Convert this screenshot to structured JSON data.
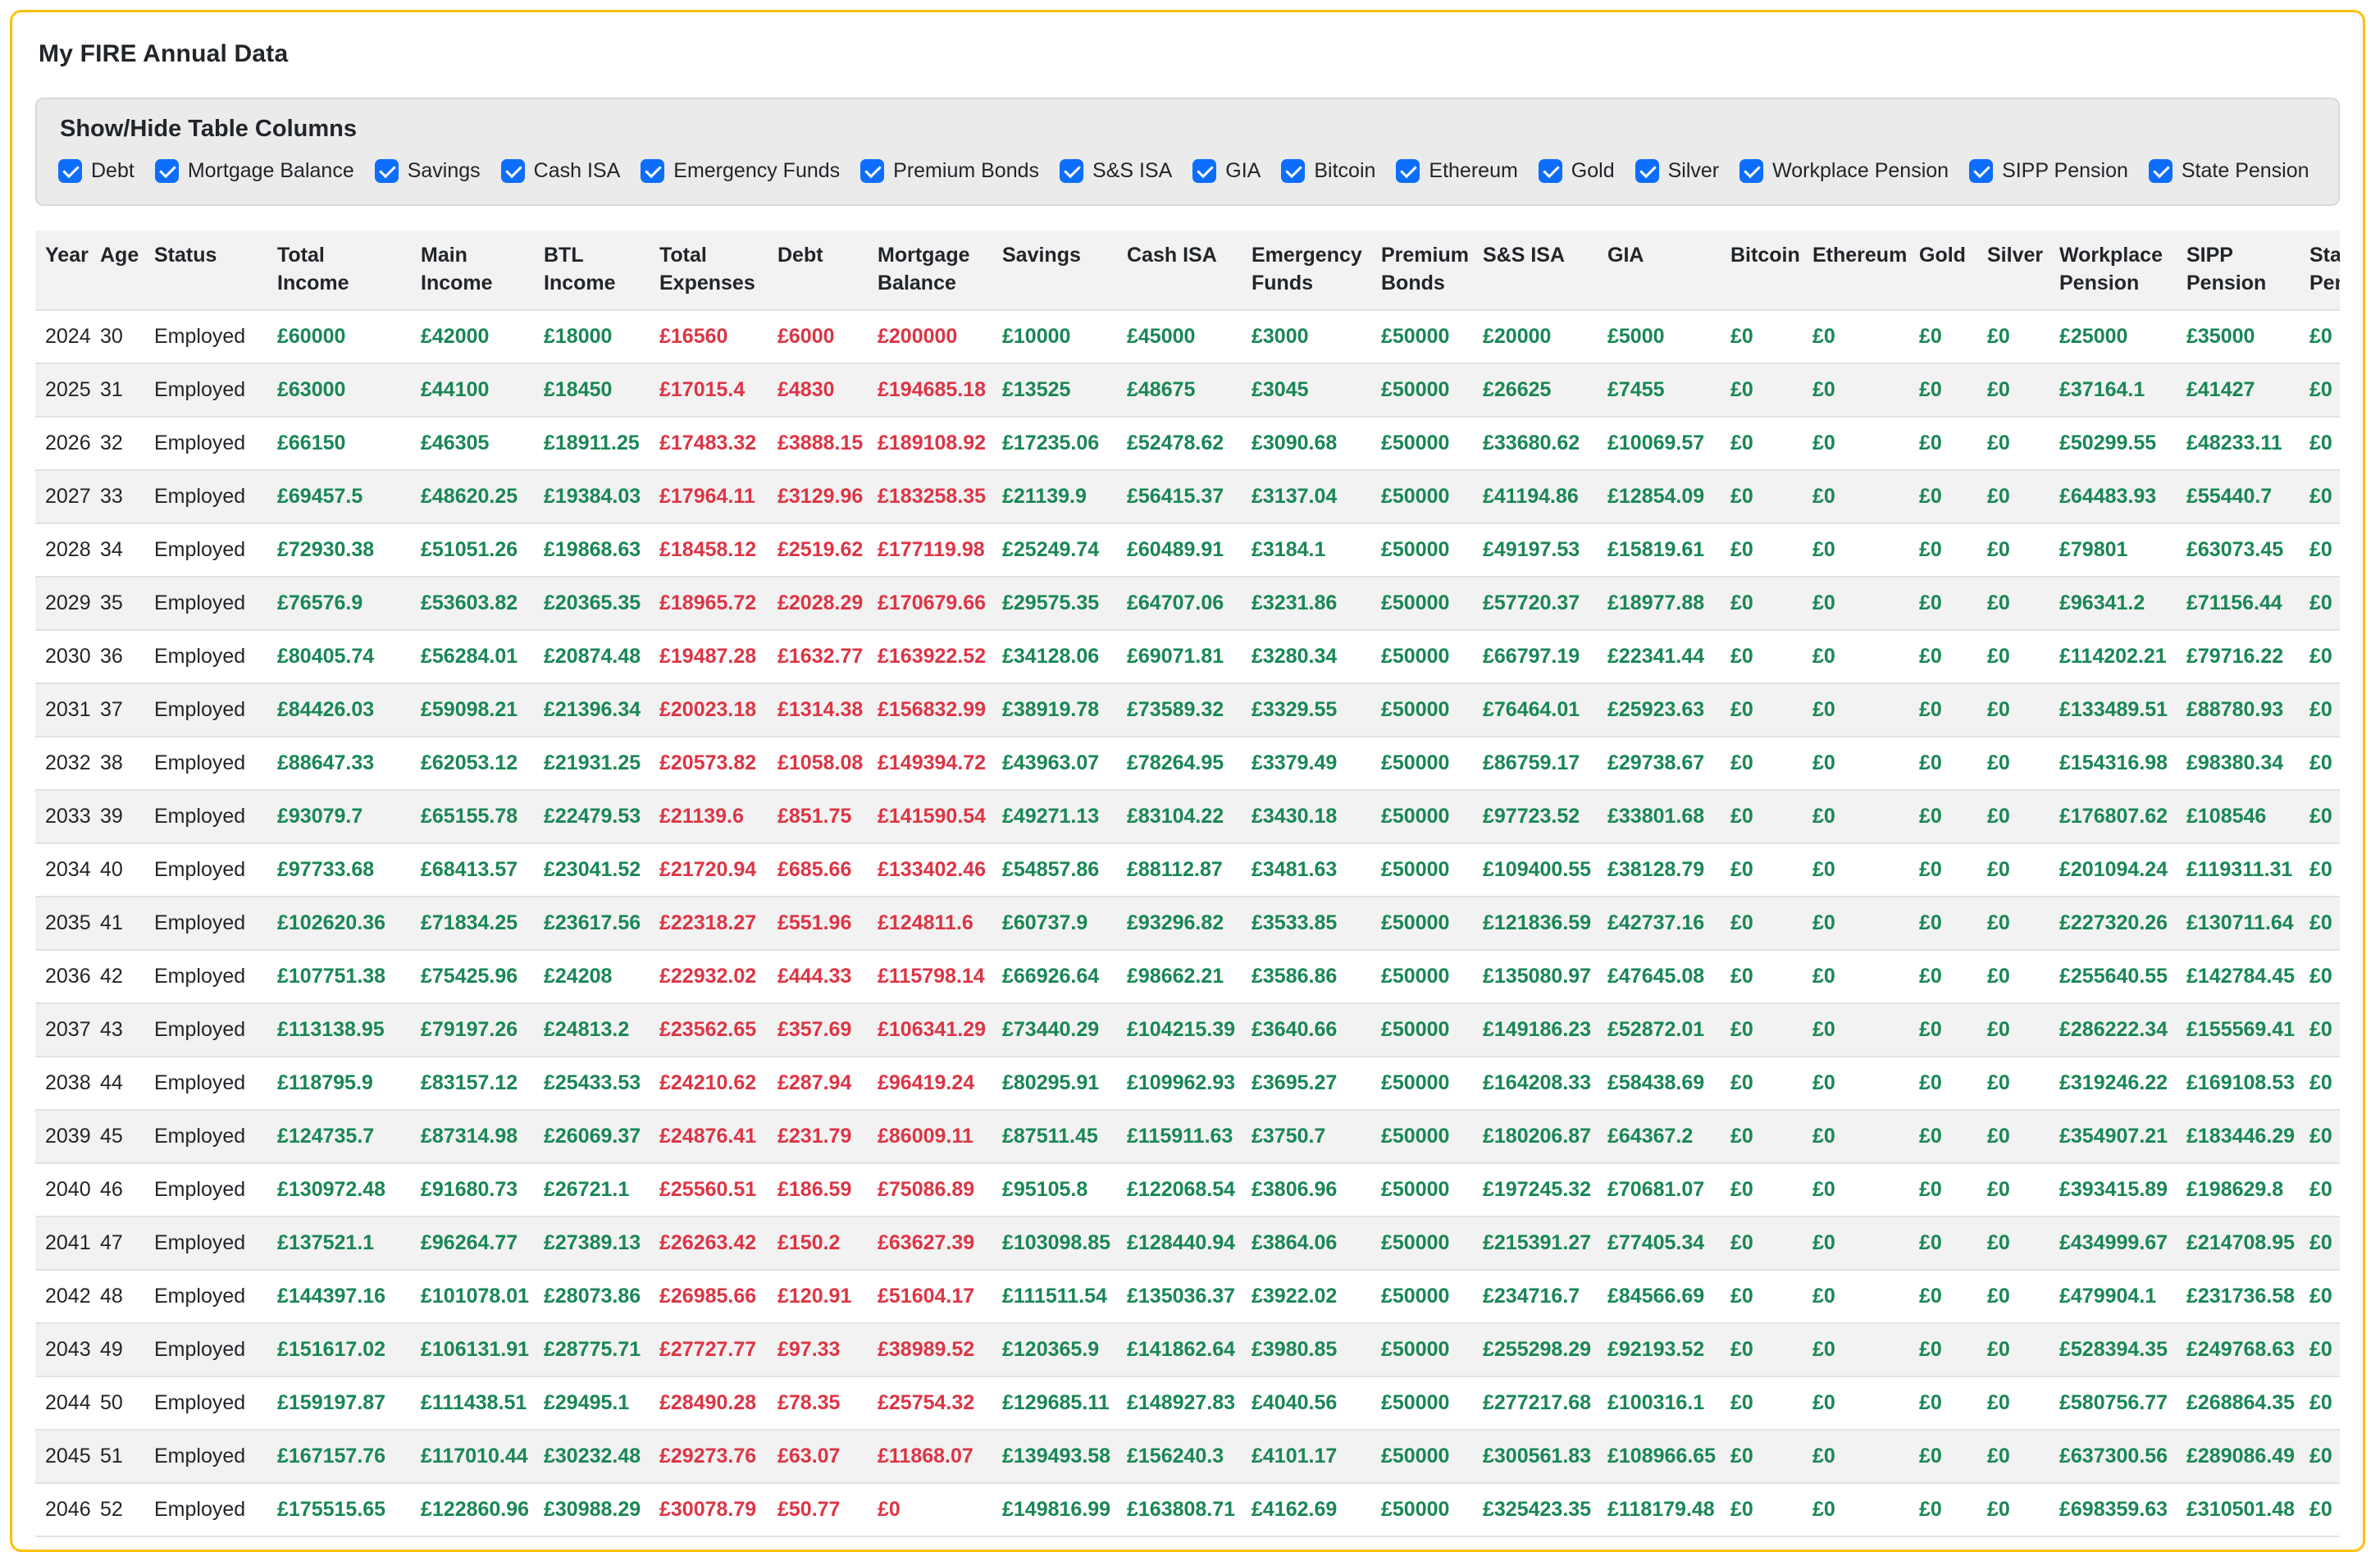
{
  "page": {
    "title": "My FIRE Annual Data"
  },
  "colors": {
    "positive": "#198754",
    "negative": "#dc3545",
    "checkbox": "#0d6efd",
    "card_border": "#ffc107",
    "stripe": "#f2f2f2"
  },
  "column_toggles": {
    "heading": "Show/Hide Table Columns",
    "items": [
      {
        "label": "Debt",
        "checked": true
      },
      {
        "label": "Mortgage Balance",
        "checked": true
      },
      {
        "label": "Savings",
        "checked": true
      },
      {
        "label": "Cash ISA",
        "checked": true
      },
      {
        "label": "Emergency Funds",
        "checked": true
      },
      {
        "label": "Premium Bonds",
        "checked": true
      },
      {
        "label": "S&S ISA",
        "checked": true
      },
      {
        "label": "GIA",
        "checked": true
      },
      {
        "label": "Bitcoin",
        "checked": true
      },
      {
        "label": "Ethereum",
        "checked": true
      },
      {
        "label": "Gold",
        "checked": true
      },
      {
        "label": "Silver",
        "checked": true
      },
      {
        "label": "Workplace Pension",
        "checked": true
      },
      {
        "label": "SIPP Pension",
        "checked": true
      },
      {
        "label": "State Pension",
        "checked": true
      }
    ]
  },
  "table": {
    "columns": [
      {
        "key": "year",
        "label": "Year",
        "width": 79,
        "kind": "text"
      },
      {
        "key": "age",
        "label": "Age",
        "width": 66,
        "kind": "text"
      },
      {
        "key": "status",
        "label": "Status",
        "width": 150,
        "kind": "text"
      },
      {
        "key": "total-income",
        "label": "Total\nIncome",
        "width": 175,
        "kind": "money",
        "tone": "pos"
      },
      {
        "key": "main-income",
        "label": "Main\nIncome",
        "width": 150,
        "kind": "money",
        "tone": "pos"
      },
      {
        "key": "btl-income",
        "label": "BTL\nIncome",
        "width": 141,
        "kind": "money",
        "tone": "pos"
      },
      {
        "key": "total-expenses",
        "label": "Total\nExpenses",
        "width": 144,
        "kind": "money",
        "tone": "neg"
      },
      {
        "key": "debt",
        "label": "Debt",
        "width": 122,
        "kind": "money",
        "tone": "neg"
      },
      {
        "key": "mortgage-balance",
        "label": "Mortgage\nBalance",
        "width": 152,
        "kind": "money",
        "tone": "neg"
      },
      {
        "key": "savings",
        "label": "Savings",
        "width": 152,
        "kind": "money",
        "tone": "pos"
      },
      {
        "key": "cash-isa",
        "label": "Cash ISA",
        "width": 152,
        "kind": "money",
        "tone": "pos"
      },
      {
        "key": "emergency-funds",
        "label": "Emergency\nFunds",
        "width": 158,
        "kind": "money",
        "tone": "pos"
      },
      {
        "key": "premium-bonds",
        "label": "Premium\nBonds",
        "width": 124,
        "kind": "money",
        "tone": "pos"
      },
      {
        "key": "ss-isa",
        "label": "S&S ISA",
        "width": 152,
        "kind": "money",
        "tone": "pos"
      },
      {
        "key": "gia",
        "label": "GIA",
        "width": 150,
        "kind": "money",
        "tone": "pos"
      },
      {
        "key": "bitcoin",
        "label": "Bitcoin",
        "width": 100,
        "kind": "money",
        "tone": "pos"
      },
      {
        "key": "ethereum",
        "label": "Ethereum",
        "width": 130,
        "kind": "money",
        "tone": "pos"
      },
      {
        "key": "gold",
        "label": "Gold",
        "width": 83,
        "kind": "money",
        "tone": "pos"
      },
      {
        "key": "silver",
        "label": "Silver",
        "width": 88,
        "kind": "money",
        "tone": "pos"
      },
      {
        "key": "workplace-pension",
        "label": "Workplace\nPension",
        "width": 155,
        "kind": "money",
        "tone": "pos"
      },
      {
        "key": "sipp-pension",
        "label": "SIPP\nPension",
        "width": 150,
        "kind": "money",
        "tone": "pos"
      },
      {
        "key": "state-pension",
        "label": "State\nPension",
        "width": 150,
        "kind": "money",
        "tone": "pos"
      }
    ],
    "rows": [
      {
        "year": "2024",
        "age": "30",
        "status": "Employed",
        "values": [
          "£60000",
          "£42000",
          "£18000",
          "£16560",
          "£6000",
          "£200000",
          "£10000",
          "£45000",
          "£3000",
          "£50000",
          "£20000",
          "£5000",
          "£0",
          "£0",
          "£0",
          "£0",
          "£25000",
          "£35000",
          "£0"
        ]
      },
      {
        "year": "2025",
        "age": "31",
        "status": "Employed",
        "values": [
          "£63000",
          "£44100",
          "£18450",
          "£17015.4",
          "£4830",
          "£194685.18",
          "£13525",
          "£48675",
          "£3045",
          "£50000",
          "£26625",
          "£7455",
          "£0",
          "£0",
          "£0",
          "£0",
          "£37164.1",
          "£41427",
          "£0"
        ]
      },
      {
        "year": "2026",
        "age": "32",
        "status": "Employed",
        "values": [
          "£66150",
          "£46305",
          "£18911.25",
          "£17483.32",
          "£3888.15",
          "£189108.92",
          "£17235.06",
          "£52478.62",
          "£3090.68",
          "£50000",
          "£33680.62",
          "£10069.57",
          "£0",
          "£0",
          "£0",
          "£0",
          "£50299.55",
          "£48233.11",
          "£0"
        ]
      },
      {
        "year": "2027",
        "age": "33",
        "status": "Employed",
        "values": [
          "£69457.5",
          "£48620.25",
          "£19384.03",
          "£17964.11",
          "£3129.96",
          "£183258.35",
          "£21139.9",
          "£56415.37",
          "£3137.04",
          "£50000",
          "£41194.86",
          "£12854.09",
          "£0",
          "£0",
          "£0",
          "£0",
          "£64483.93",
          "£55440.7",
          "£0"
        ]
      },
      {
        "year": "2028",
        "age": "34",
        "status": "Employed",
        "values": [
          "£72930.38",
          "£51051.26",
          "£19868.63",
          "£18458.12",
          "£2519.62",
          "£177119.98",
          "£25249.74",
          "£60489.91",
          "£3184.1",
          "£50000",
          "£49197.53",
          "£15819.61",
          "£0",
          "£0",
          "£0",
          "£0",
          "£79801",
          "£63073.45",
          "£0"
        ]
      },
      {
        "year": "2029",
        "age": "35",
        "status": "Employed",
        "values": [
          "£76576.9",
          "£53603.82",
          "£20365.35",
          "£18965.72",
          "£2028.29",
          "£170679.66",
          "£29575.35",
          "£64707.06",
          "£3231.86",
          "£50000",
          "£57720.37",
          "£18977.88",
          "£0",
          "£0",
          "£0",
          "£0",
          "£96341.2",
          "£71156.44",
          "£0"
        ]
      },
      {
        "year": "2030",
        "age": "36",
        "status": "Employed",
        "values": [
          "£80405.74",
          "£56284.01",
          "£20874.48",
          "£19487.28",
          "£1632.77",
          "£163922.52",
          "£34128.06",
          "£69071.81",
          "£3280.34",
          "£50000",
          "£66797.19",
          "£22341.44",
          "£0",
          "£0",
          "£0",
          "£0",
          "£114202.21",
          "£79716.22",
          "£0"
        ]
      },
      {
        "year": "2031",
        "age": "37",
        "status": "Employed",
        "values": [
          "£84426.03",
          "£59098.21",
          "£21396.34",
          "£20023.18",
          "£1314.38",
          "£156832.99",
          "£38919.78",
          "£73589.32",
          "£3329.55",
          "£50000",
          "£76464.01",
          "£25923.63",
          "£0",
          "£0",
          "£0",
          "£0",
          "£133489.51",
          "£88780.93",
          "£0"
        ]
      },
      {
        "year": "2032",
        "age": "38",
        "status": "Employed",
        "values": [
          "£88647.33",
          "£62053.12",
          "£21931.25",
          "£20573.82",
          "£1058.08",
          "£149394.72",
          "£43963.07",
          "£78264.95",
          "£3379.49",
          "£50000",
          "£86759.17",
          "£29738.67",
          "£0",
          "£0",
          "£0",
          "£0",
          "£154316.98",
          "£98380.34",
          "£0"
        ]
      },
      {
        "year": "2033",
        "age": "39",
        "status": "Employed",
        "values": [
          "£93079.7",
          "£65155.78",
          "£22479.53",
          "£21139.6",
          "£851.75",
          "£141590.54",
          "£49271.13",
          "£83104.22",
          "£3430.18",
          "£50000",
          "£97723.52",
          "£33801.68",
          "£0",
          "£0",
          "£0",
          "£0",
          "£176807.62",
          "£108546",
          "£0"
        ]
      },
      {
        "year": "2034",
        "age": "40",
        "status": "Employed",
        "values": [
          "£97733.68",
          "£68413.57",
          "£23041.52",
          "£21720.94",
          "£685.66",
          "£133402.46",
          "£54857.86",
          "£88112.87",
          "£3481.63",
          "£50000",
          "£109400.55",
          "£38128.79",
          "£0",
          "£0",
          "£0",
          "£0",
          "£201094.24",
          "£119311.31",
          "£0"
        ]
      },
      {
        "year": "2035",
        "age": "41",
        "status": "Employed",
        "values": [
          "£102620.36",
          "£71834.25",
          "£23617.56",
          "£22318.27",
          "£551.96",
          "£124811.6",
          "£60737.9",
          "£93296.82",
          "£3533.85",
          "£50000",
          "£121836.59",
          "£42737.16",
          "£0",
          "£0",
          "£0",
          "£0",
          "£227320.26",
          "£130711.64",
          "£0"
        ]
      },
      {
        "year": "2036",
        "age": "42",
        "status": "Employed",
        "values": [
          "£107751.38",
          "£75425.96",
          "£24208",
          "£22932.02",
          "£444.33",
          "£115798.14",
          "£66926.64",
          "£98662.21",
          "£3586.86",
          "£50000",
          "£135080.97",
          "£47645.08",
          "£0",
          "£0",
          "£0",
          "£0",
          "£255640.55",
          "£142784.45",
          "£0"
        ]
      },
      {
        "year": "2037",
        "age": "43",
        "status": "Employed",
        "values": [
          "£113138.95",
          "£79197.26",
          "£24813.2",
          "£23562.65",
          "£357.69",
          "£106341.29",
          "£73440.29",
          "£104215.39",
          "£3640.66",
          "£50000",
          "£149186.23",
          "£52872.01",
          "£0",
          "£0",
          "£0",
          "£0",
          "£286222.34",
          "£155569.41",
          "£0"
        ]
      },
      {
        "year": "2038",
        "age": "44",
        "status": "Employed",
        "values": [
          "£118795.9",
          "£83157.12",
          "£25433.53",
          "£24210.62",
          "£287.94",
          "£96419.24",
          "£80295.91",
          "£109962.93",
          "£3695.27",
          "£50000",
          "£164208.33",
          "£58438.69",
          "£0",
          "£0",
          "£0",
          "£0",
          "£319246.22",
          "£169108.53",
          "£0"
        ]
      },
      {
        "year": "2039",
        "age": "45",
        "status": "Employed",
        "values": [
          "£124735.7",
          "£87314.98",
          "£26069.37",
          "£24876.41",
          "£231.79",
          "£86009.11",
          "£87511.45",
          "£115911.63",
          "£3750.7",
          "£50000",
          "£180206.87",
          "£64367.2",
          "£0",
          "£0",
          "£0",
          "£0",
          "£354907.21",
          "£183446.29",
          "£0"
        ]
      },
      {
        "year": "2040",
        "age": "46",
        "status": "Employed",
        "values": [
          "£130972.48",
          "£91680.73",
          "£26721.1",
          "£25560.51",
          "£186.59",
          "£75086.89",
          "£95105.8",
          "£122068.54",
          "£3806.96",
          "£50000",
          "£197245.32",
          "£70681.07",
          "£0",
          "£0",
          "£0",
          "£0",
          "£393415.89",
          "£198629.8",
          "£0"
        ]
      },
      {
        "year": "2041",
        "age": "47",
        "status": "Employed",
        "values": [
          "£137521.1",
          "£96264.77",
          "£27389.13",
          "£26263.42",
          "£150.2",
          "£63627.39",
          "£103098.85",
          "£128440.94",
          "£3864.06",
          "£50000",
          "£215391.27",
          "£77405.34",
          "£0",
          "£0",
          "£0",
          "£0",
          "£434999.67",
          "£214708.95",
          "£0"
        ]
      },
      {
        "year": "2042",
        "age": "48",
        "status": "Employed",
        "values": [
          "£144397.16",
          "£101078.01",
          "£28073.86",
          "£26985.66",
          "£120.91",
          "£51604.17",
          "£111511.54",
          "£135036.37",
          "£3922.02",
          "£50000",
          "£234716.7",
          "£84566.69",
          "£0",
          "£0",
          "£0",
          "£0",
          "£479904.1",
          "£231736.58",
          "£0"
        ]
      },
      {
        "year": "2043",
        "age": "49",
        "status": "Employed",
        "values": [
          "£151617.02",
          "£106131.91",
          "£28775.71",
          "£27727.77",
          "£97.33",
          "£38989.52",
          "£120365.9",
          "£141862.64",
          "£3980.85",
          "£50000",
          "£255298.29",
          "£92193.52",
          "£0",
          "£0",
          "£0",
          "£0",
          "£528394.35",
          "£249768.63",
          "£0"
        ]
      },
      {
        "year": "2044",
        "age": "50",
        "status": "Employed",
        "values": [
          "£159197.87",
          "£111438.51",
          "£29495.1",
          "£28490.28",
          "£78.35",
          "£25754.32",
          "£129685.11",
          "£148927.83",
          "£4040.56",
          "£50000",
          "£277217.68",
          "£100316.1",
          "£0",
          "£0",
          "£0",
          "£0",
          "£580756.77",
          "£268864.35",
          "£0"
        ]
      },
      {
        "year": "2045",
        "age": "51",
        "status": "Employed",
        "values": [
          "£167157.76",
          "£117010.44",
          "£30232.48",
          "£29273.76",
          "£63.07",
          "£11868.07",
          "£139493.58",
          "£156240.3",
          "£4101.17",
          "£50000",
          "£300561.83",
          "£108966.65",
          "£0",
          "£0",
          "£0",
          "£0",
          "£637300.56",
          "£289086.49",
          "£0"
        ]
      },
      {
        "year": "2046",
        "age": "52",
        "status": "Employed",
        "values": [
          "£175515.65",
          "£122860.96",
          "£30988.29",
          "£30078.79",
          "£50.77",
          "£0",
          "£149816.99",
          "£163808.71",
          "£4162.69",
          "£50000",
          "£325423.35",
          "£118179.48",
          "£0",
          "£0",
          "£0",
          "£0",
          "£698359.63",
          "£310501.48",
          "£0"
        ]
      }
    ]
  }
}
